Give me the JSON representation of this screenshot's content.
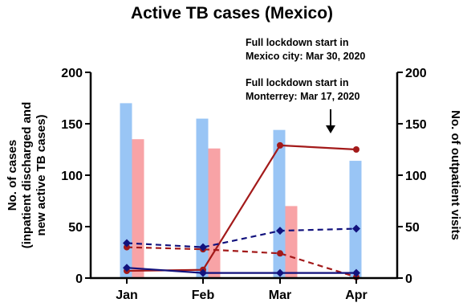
{
  "chart_data": {
    "type": "bar",
    "title": "Active TB cases (Mexico)",
    "categories": [
      "Jan",
      "Feb",
      "Mar",
      "Apr"
    ],
    "ylabel_left_lines": [
      "No. of cases",
      "(inpatient discharged and",
      "new active TB cases)"
    ],
    "ylabel_right": "No. of outpatient visits",
    "ylim_left": [
      0,
      200
    ],
    "ylim_right": [
      0,
      200
    ],
    "yticks": [
      "0",
      "50",
      "100",
      "150",
      "200"
    ],
    "bars": [
      {
        "axis": "left",
        "color": "#99c5f5",
        "values": [
          170,
          155,
          144,
          114
        ]
      },
      {
        "axis": "left",
        "color": "#f8a3a6",
        "values": [
          135,
          126,
          70,
          0
        ]
      }
    ],
    "lines": [
      {
        "axis": "right",
        "color": "#a31a1a",
        "style": "solid",
        "marker": "circle",
        "values": [
          7,
          8,
          129,
          125
        ]
      },
      {
        "axis": "right",
        "color": "#a31a1a",
        "style": "dashed",
        "marker": "circle",
        "values": [
          30,
          28,
          24,
          1
        ]
      },
      {
        "axis": "right",
        "color": "#12127d",
        "style": "dashed",
        "marker": "diamond",
        "values": [
          34,
          30,
          46,
          48
        ]
      },
      {
        "axis": "right",
        "color": "#12127d",
        "style": "solid",
        "marker": "diamond",
        "values": [
          10,
          5,
          5,
          5
        ]
      }
    ],
    "annotations": [
      {
        "lines": [
          "Full lockdown start in",
          "Mexico city: Mar 30, 2020"
        ]
      },
      {
        "lines": [
          "Full lockdown start in",
          "Monterrey: Mar 17, 2020"
        ]
      }
    ],
    "grid": false,
    "legend": "none"
  }
}
